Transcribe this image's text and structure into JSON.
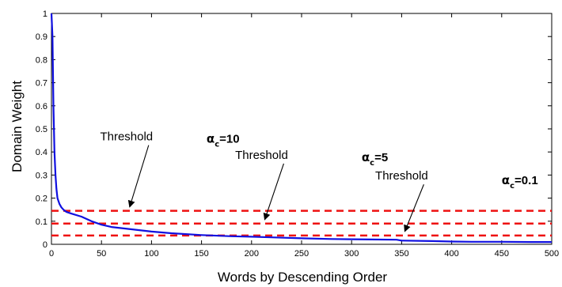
{
  "chart_data": {
    "type": "line",
    "title": "",
    "xlabel": "Words by Descending Order",
    "ylabel": "Domain Weight",
    "xlim": [
      0,
      500
    ],
    "ylim": [
      0,
      1
    ],
    "x_ticks": [
      0,
      50,
      100,
      150,
      200,
      250,
      300,
      350,
      400,
      450,
      500
    ],
    "y_ticks": [
      0,
      0.1,
      0.2,
      0.3,
      0.4,
      0.5,
      0.6,
      0.7,
      0.8,
      0.9,
      1
    ],
    "y_tick_labels": [
      "0",
      "0.1",
      "0.2",
      "0.3",
      "0.4",
      "0.5",
      "0.6",
      "0.7",
      "0.8",
      "0.9",
      "1"
    ],
    "grid": false,
    "series": [
      {
        "color": "#1010e0",
        "x": [
          0,
          1,
          2,
          3,
          4,
          5,
          6,
          8,
          10,
          12,
          15,
          20,
          30,
          40,
          50,
          60,
          80,
          100,
          120,
          150,
          180,
          200,
          220,
          250,
          280,
          300,
          320,
          345,
          350,
          380,
          400,
          420,
          450,
          480,
          500
        ],
        "y": [
          1.0,
          0.9,
          0.6,
          0.4,
          0.3,
          0.24,
          0.2,
          0.175,
          0.16,
          0.15,
          0.14,
          0.133,
          0.12,
          0.1,
          0.085,
          0.075,
          0.065,
          0.055,
          0.048,
          0.04,
          0.035,
          0.033,
          0.03,
          0.026,
          0.023,
          0.022,
          0.021,
          0.02,
          0.016,
          0.014,
          0.012,
          0.011,
          0.011,
          0.01,
          0.01
        ]
      }
    ],
    "thresholds": [
      {
        "y": 0.145,
        "color": "#ee1111"
      },
      {
        "y": 0.09,
        "color": "#ee1111"
      },
      {
        "y": 0.038,
        "color": "#ee1111"
      }
    ],
    "annotations": [
      {
        "text": "Threshold",
        "x": 75,
        "y": 0.45,
        "arrow_to": [
          75,
          0.148
        ]
      },
      {
        "alpha": "α",
        "sub": "c",
        "value": "=10",
        "x": 155,
        "y": 0.44
      },
      {
        "text": "Threshold",
        "x": 210,
        "y": 0.37,
        "arrow_to": [
          210,
          0.093
        ]
      },
      {
        "alpha": "α",
        "sub": "c",
        "value": "=5",
        "x": 310,
        "y": 0.36
      },
      {
        "text": "Threshold",
        "x": 350,
        "y": 0.28,
        "arrow_to": [
          350,
          0.042
        ]
      },
      {
        "alpha": "α",
        "sub": "c",
        "value": "=0.1",
        "x": 450,
        "y": 0.26
      }
    ]
  }
}
